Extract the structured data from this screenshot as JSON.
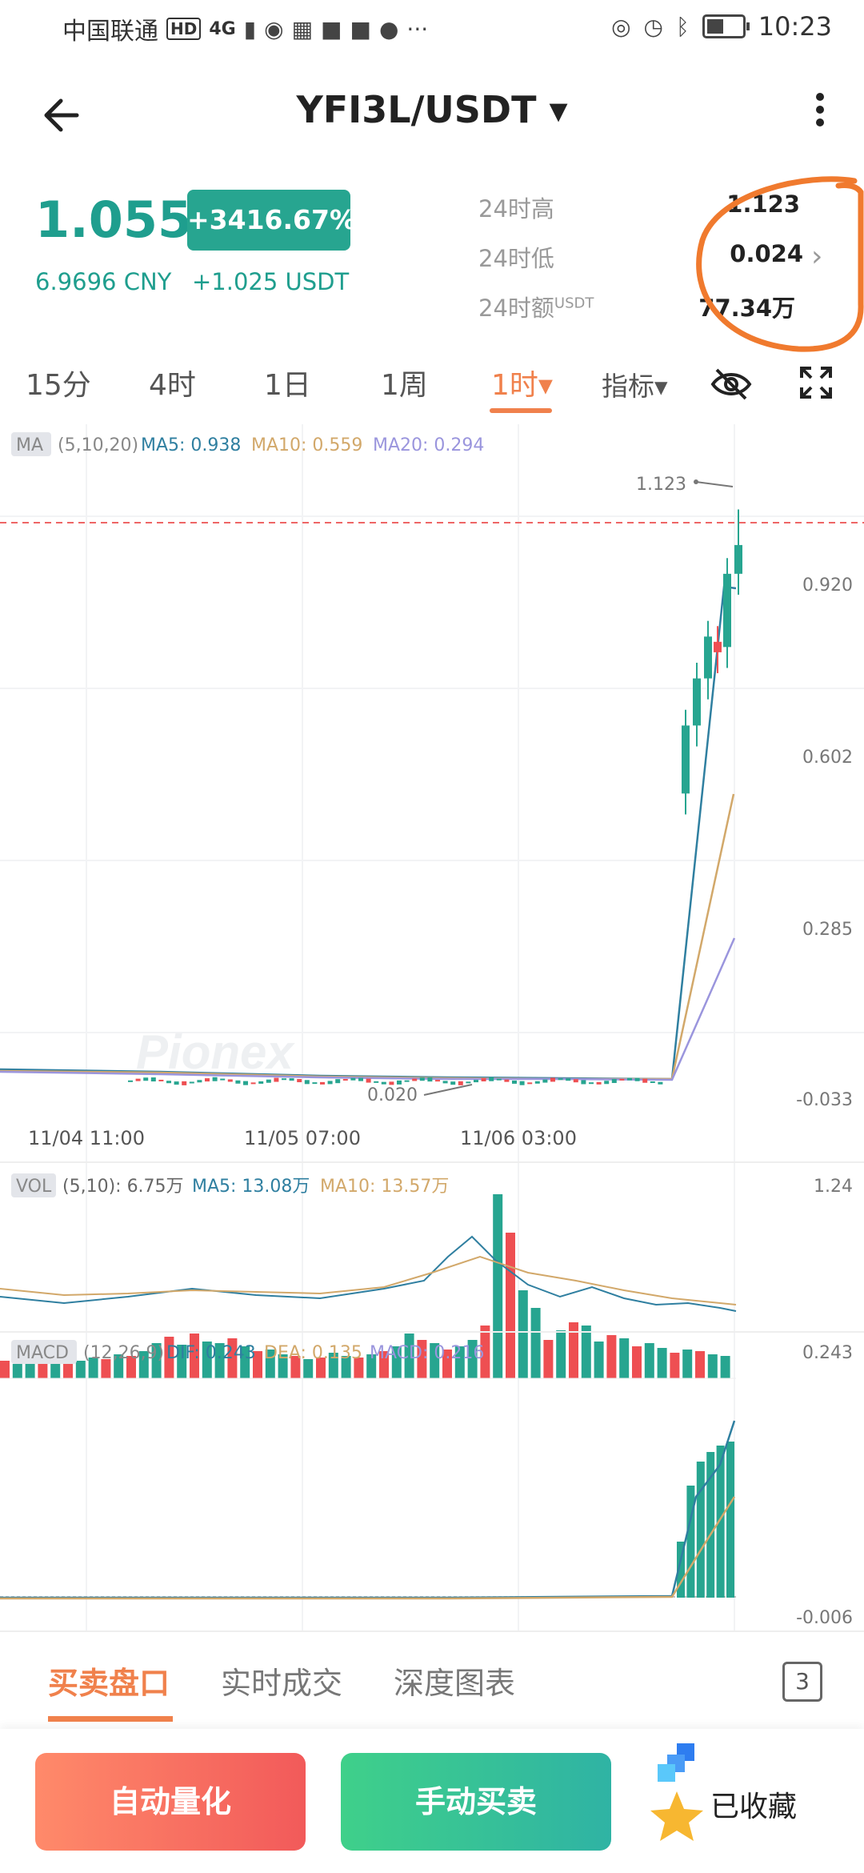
{
  "status_bar": {
    "carrier": "中国联通",
    "hd": "HD",
    "signal": "4G",
    "time": "10:23"
  },
  "header": {
    "pair": "YFI3L/USDT ▾"
  },
  "ticker": {
    "price": "1.055",
    "change_pct": "+3416.67%",
    "price_cny": "6.9696 CNY",
    "change_usdt": "+1.025 USDT",
    "stats": [
      {
        "label": "24时高",
        "value": "1.123"
      },
      {
        "label": "24时低",
        "value": "0.024"
      },
      {
        "label": "24时额",
        "sup": "USDT",
        "value": "77.34万"
      }
    ]
  },
  "timeframes": [
    "15分",
    "4时",
    "1日",
    "1周",
    "1时▾",
    "指标▾"
  ],
  "timeframe_active_index": 4,
  "chart": {
    "watermark": "Pionex",
    "ma_legend": {
      "tag": "MA",
      "params": "(5,10,20)",
      "ma5": "MA5: 0.938",
      "ma10": "MA10: 0.559",
      "ma20": "MA20: 0.294"
    },
    "y_ticks": [
      "0.920",
      "0.602",
      "0.285",
      "-0.033"
    ],
    "high_label": "1.123",
    "low_label": "0.020",
    "x_ticks": [
      "11/04 11:00",
      "11/05 07:00",
      "11/06 03:00"
    ],
    "vol_legend": {
      "tag": "VOL",
      "params": "(5,10):",
      "value": "6.75万",
      "ma5": "MA5: 13.08万",
      "ma10": "MA10: 13.57万"
    },
    "vol_max": "1.24",
    "macd_legend": {
      "tag": "MACD",
      "params": "(12,26,9)",
      "dif": "DIF: 0.243",
      "dea": "DEA: 0.135",
      "macd": "MACD: 0.216"
    },
    "macd_top": "0.243",
    "macd_bottom": "-0.006",
    "colors": {
      "up": "#27a590",
      "down": "#ee4f52",
      "ma5": "#2f7fa0",
      "ma10": "#d2a86a",
      "ma20": "#9a95dd",
      "dashline": "#ee6666"
    }
  },
  "chart_data": {
    "type": "candlestick",
    "interval": "1时",
    "candles_recent": [
      {
        "o": 0.58,
        "c": 0.71
      },
      {
        "o": 0.71,
        "c": 0.8
      },
      {
        "o": 0.8,
        "c": 0.88
      },
      {
        "o": 0.87,
        "c": 0.85
      },
      {
        "o": 0.86,
        "c": 1.0
      },
      {
        "o": 1.0,
        "c": 1.055,
        "h": 1.123
      }
    ],
    "high": 1.123,
    "low": 0.02,
    "ylim": [
      -0.033,
      1.24
    ]
  },
  "bottom_tabs": [
    "买卖盘口",
    "实时成交",
    "深度图表"
  ],
  "bottom_badge": "3",
  "actions": {
    "auto": "自动量化",
    "manual": "手动买卖",
    "favorite": "已收藏"
  }
}
